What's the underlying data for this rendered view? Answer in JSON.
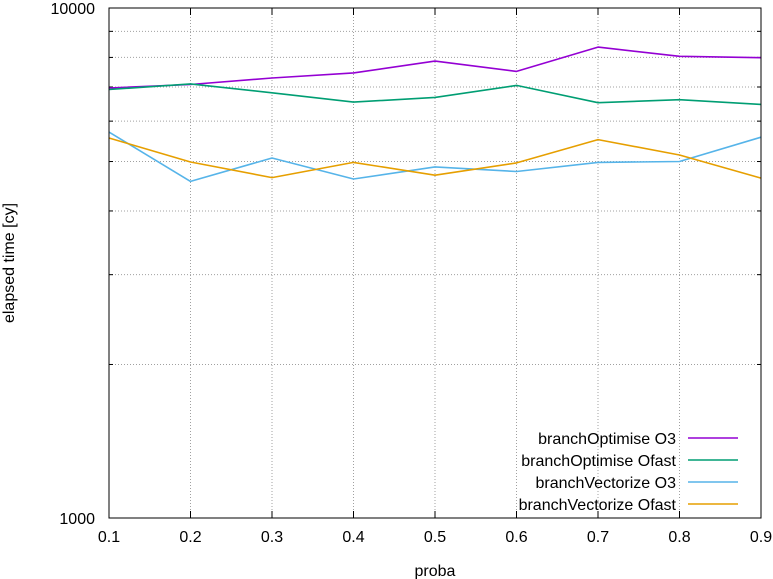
{
  "chart_data": {
    "type": "line",
    "title": "",
    "xlabel": "proba",
    "ylabel": "elapsed time [cy]",
    "xlim": [
      0.1,
      0.9
    ],
    "ylim": [
      1000,
      10000
    ],
    "yscale": "log",
    "grid": true,
    "legend_position": "bottom-right",
    "x_ticks": [
      "0.1",
      "0.2",
      "0.3",
      "0.4",
      "0.5",
      "0.6",
      "0.7",
      "0.8",
      "0.9"
    ],
    "y_ticks": [
      "1000",
      "10000"
    ],
    "x": [
      0.1,
      0.2,
      0.3,
      0.4,
      0.5,
      0.6,
      0.7,
      0.8,
      0.9
    ],
    "series": [
      {
        "name": "branchOptimise O3",
        "color": "#9400d3",
        "values": [
          6970,
          7080,
          7290,
          7460,
          7870,
          7510,
          8380,
          8040,
          7990
        ]
      },
      {
        "name": "branchOptimise Ofast",
        "color": "#009e73",
        "values": [
          6920,
          7100,
          6820,
          6540,
          6680,
          7050,
          6520,
          6610,
          6470
        ]
      },
      {
        "name": "branchVectorize O3",
        "color": "#56b4e9",
        "values": [
          5710,
          4570,
          5080,
          4620,
          4880,
          4780,
          4980,
          5000,
          5580
        ]
      },
      {
        "name": "branchVectorize Ofast",
        "color": "#e69f00",
        "values": [
          5560,
          4990,
          4650,
          4980,
          4700,
          4970,
          5520,
          5150,
          4640
        ]
      }
    ]
  }
}
